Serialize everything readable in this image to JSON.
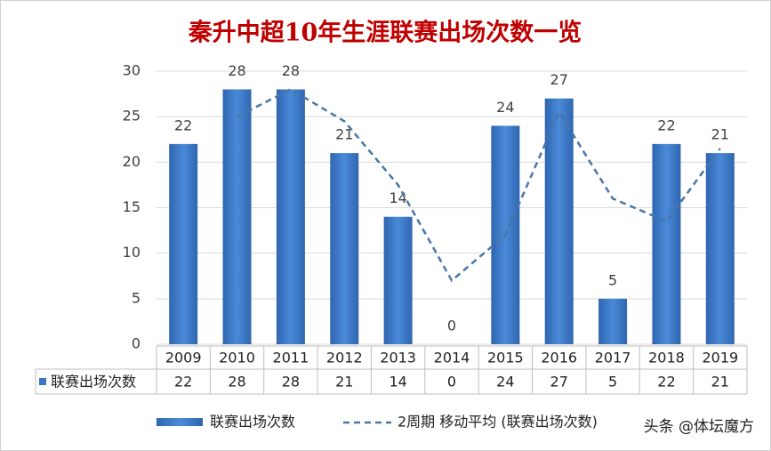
{
  "chart_data": {
    "type": "bar",
    "title": "秦升中超10年生涯联赛出场次数一览",
    "categories": [
      "2009",
      "2010",
      "2011",
      "2012",
      "2013",
      "2014",
      "2015",
      "2016",
      "2017",
      "2018",
      "2019"
    ],
    "series": [
      {
        "name": "联赛出场次数",
        "type": "bar",
        "color": "#3a78c6",
        "values": [
          22,
          28,
          28,
          21,
          14,
          0,
          24,
          27,
          5,
          22,
          21
        ]
      },
      {
        "name": "2周期 移动平均 (联赛出场次数)",
        "type": "line",
        "color": "#4a76a8",
        "values": [
          null,
          25,
          28,
          24.5,
          17.5,
          7,
          12,
          25.5,
          16,
          13.5,
          21.5
        ]
      }
    ],
    "ylim": [
      0,
      30
    ],
    "yticks": [
      0,
      5,
      10,
      15,
      20,
      25,
      30
    ],
    "grid": true,
    "watermark": "头条 @体坛魔方"
  }
}
